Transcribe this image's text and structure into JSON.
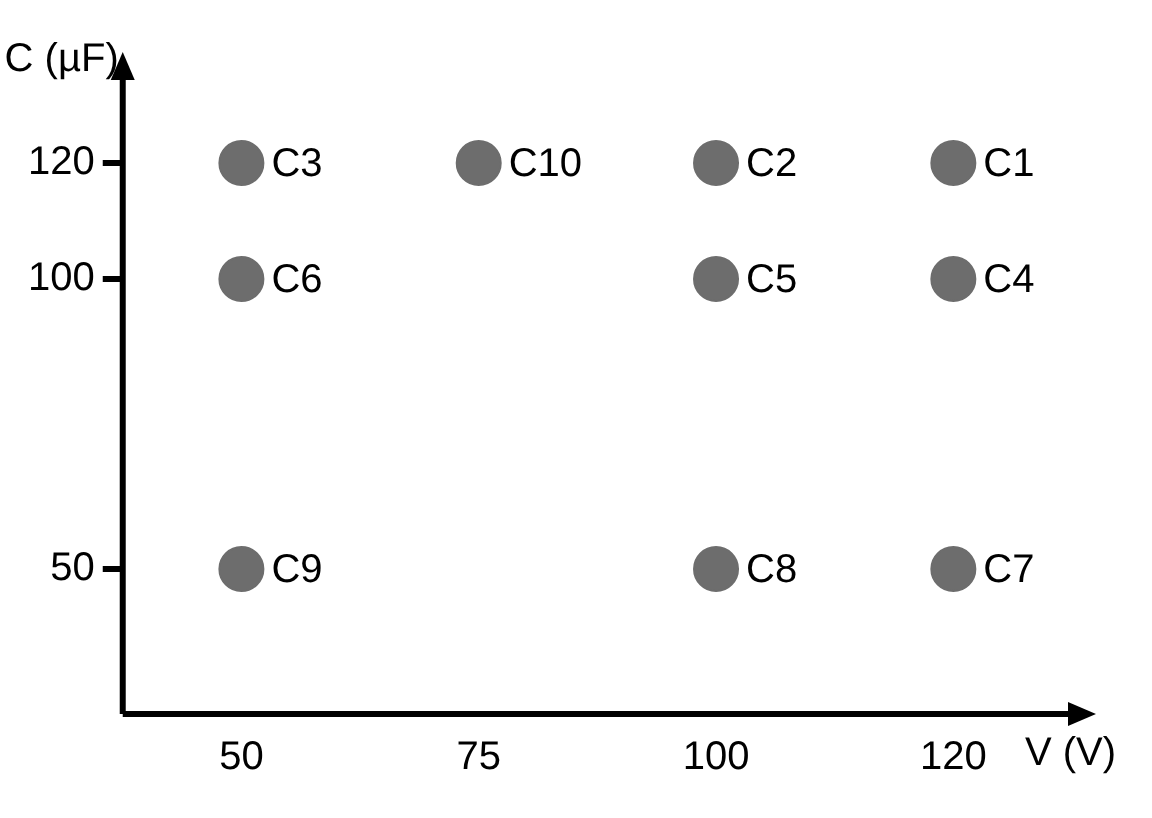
{
  "chart_data": {
    "type": "scatter",
    "xlabel": "V (V)",
    "ylabel": "C (µF)",
    "categories": [
      "50",
      "75",
      "100",
      "120"
    ],
    "ylim": [
      25,
      135
    ],
    "yticks": [
      50,
      100,
      120
    ],
    "grid": false,
    "legend": false,
    "marker": "circle",
    "series": [
      {
        "color": "#6d6d6d",
        "x": [
          "120",
          "100",
          "50",
          "120",
          "100",
          "50",
          "120",
          "100",
          "50",
          "75"
        ],
        "values": [
          120,
          120,
          120,
          100,
          100,
          100,
          50,
          50,
          50,
          120
        ]
      }
    ],
    "annotations": [
      {
        "text": "C1",
        "x": "120",
        "y": 120
      },
      {
        "text": "C2",
        "x": "100",
        "y": 120
      },
      {
        "text": "C3",
        "x": "50",
        "y": 120
      },
      {
        "text": "C4",
        "x": "120",
        "y": 100
      },
      {
        "text": "C5",
        "x": "100",
        "y": 100
      },
      {
        "text": "C6",
        "x": "50",
        "y": 100
      },
      {
        "text": "C7",
        "x": "120",
        "y": 50
      },
      {
        "text": "C8",
        "x": "100",
        "y": 50
      },
      {
        "text": "C9",
        "x": "50",
        "y": 50
      },
      {
        "text": "C10",
        "x": "75",
        "y": 120
      }
    ]
  }
}
